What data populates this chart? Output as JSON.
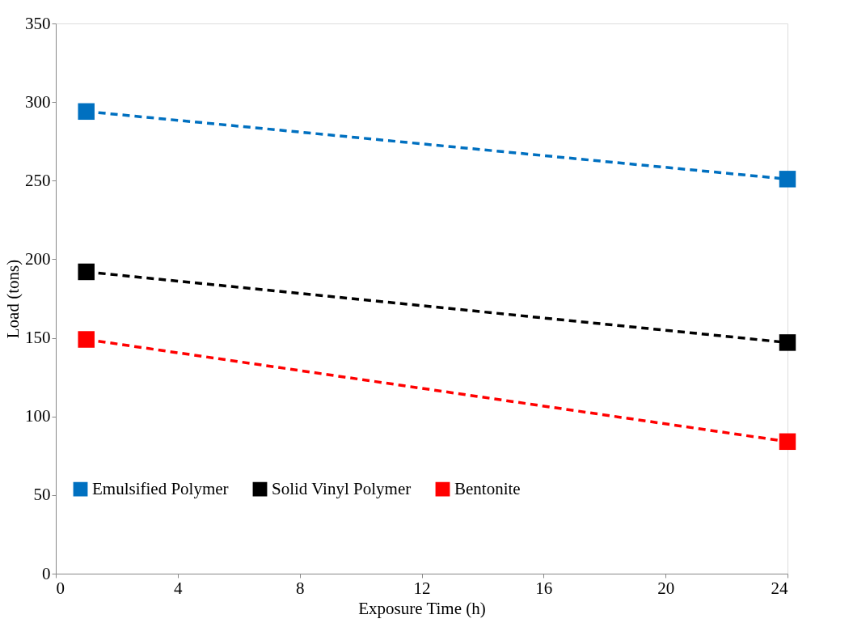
{
  "chart_data": {
    "type": "line",
    "xlabel": "Exposure Time (h)",
    "ylabel": "Load (tons)",
    "x": [
      1,
      24
    ],
    "series": [
      {
        "name": "Emulsified Polymer",
        "color": "#0070c0",
        "values": [
          294,
          251
        ]
      },
      {
        "name": "Solid Vinyl Polymer",
        "color": "#000000",
        "values": [
          192,
          147
        ]
      },
      {
        "name": "Bentonite",
        "color": "#ff0000",
        "values": [
          149,
          84
        ]
      }
    ],
    "xlim": [
      0,
      24
    ],
    "xticks": [
      0,
      4,
      8,
      12,
      16,
      20,
      24
    ],
    "ylim": [
      0,
      350
    ],
    "yticks": [
      0,
      50,
      100,
      150,
      200,
      250,
      300,
      350
    ],
    "grid": false,
    "legend": "bottom",
    "marker": "square",
    "line_style": "dashed"
  }
}
